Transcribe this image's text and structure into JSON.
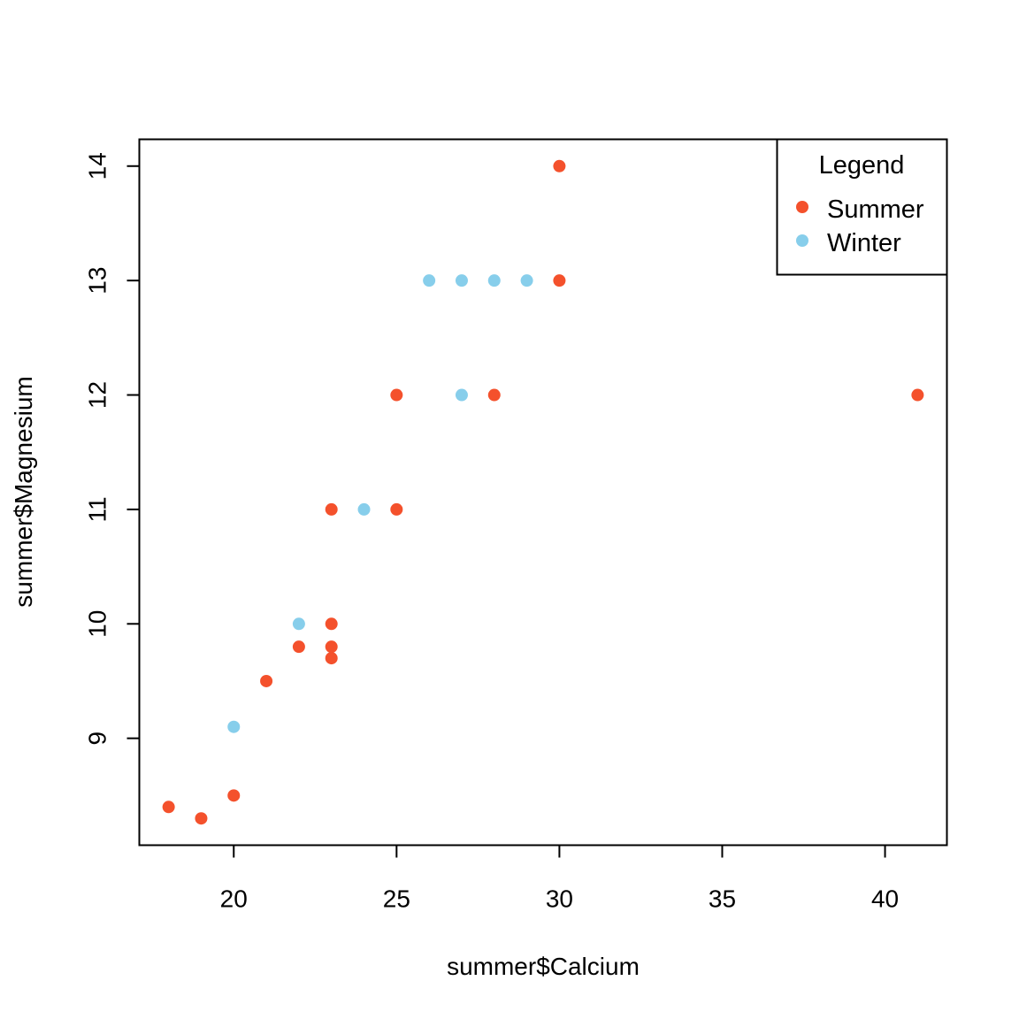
{
  "chart_data": {
    "type": "scatter",
    "title": "",
    "xlabel": "summer$Calcium",
    "ylabel": "summer$Magnesium",
    "xlim": [
      17.1,
      41.9
    ],
    "ylim": [
      8.066,
      14.234
    ],
    "x_ticks": [
      20,
      25,
      30,
      35,
      40
    ],
    "y_ticks": [
      9,
      10,
      11,
      12,
      13,
      14
    ],
    "grid": false,
    "legend": {
      "title": "Legend",
      "placement": "top-right"
    },
    "series": [
      {
        "name": "Summer",
        "color": "#F4512C",
        "points": [
          {
            "x": 18,
            "y": 8.4
          },
          {
            "x": 19,
            "y": 8.3
          },
          {
            "x": 20,
            "y": 8.5
          },
          {
            "x": 21,
            "y": 9.5
          },
          {
            "x": 22,
            "y": 9.8
          },
          {
            "x": 23,
            "y": 9.7
          },
          {
            "x": 23,
            "y": 9.8
          },
          {
            "x": 23,
            "y": 10.0
          },
          {
            "x": 23,
            "y": 11.0
          },
          {
            "x": 25,
            "y": 11.0
          },
          {
            "x": 25,
            "y": 12.0
          },
          {
            "x": 28,
            "y": 12.0
          },
          {
            "x": 30,
            "y": 13.0
          },
          {
            "x": 30,
            "y": 14.0
          },
          {
            "x": 41,
            "y": 12.0
          }
        ]
      },
      {
        "name": "Winter",
        "color": "#87CEEB",
        "points": [
          {
            "x": 20,
            "y": 9.1
          },
          {
            "x": 22,
            "y": 10.0
          },
          {
            "x": 24,
            "y": 11.0
          },
          {
            "x": 26,
            "y": 13.0
          },
          {
            "x": 27,
            "y": 13.0
          },
          {
            "x": 27,
            "y": 12.0
          },
          {
            "x": 28,
            "y": 13.0
          },
          {
            "x": 29,
            "y": 13.0
          }
        ]
      }
    ]
  }
}
